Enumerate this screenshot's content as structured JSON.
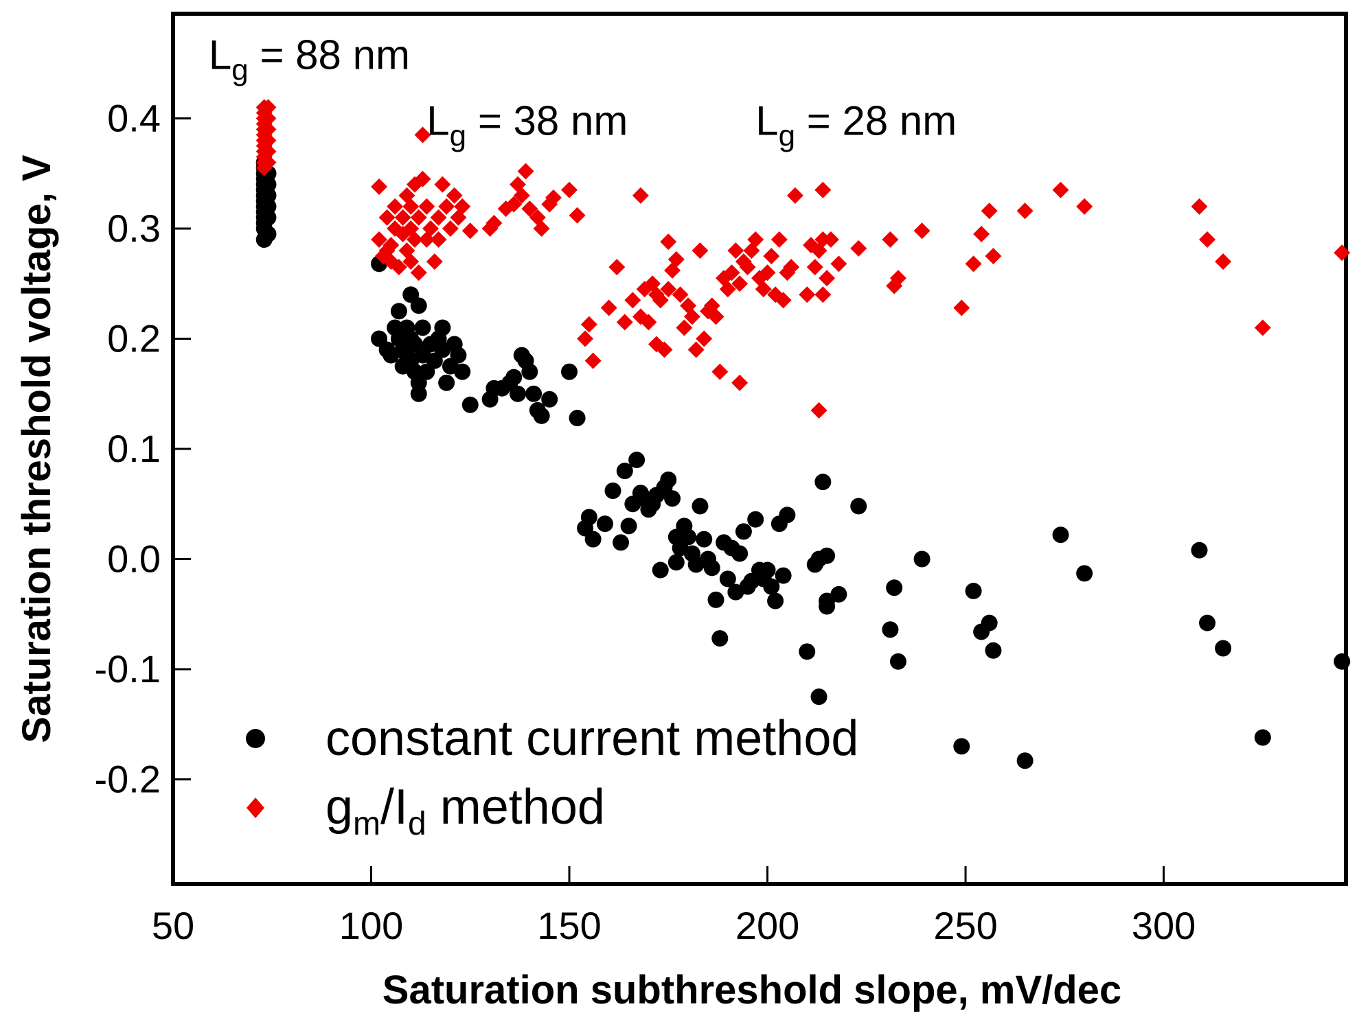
{
  "chart_data": {
    "type": "scatter",
    "title": "",
    "xlabel": "Saturation subthreshold slope, mV/dec",
    "ylabel": "Saturation threshold voltage, V",
    "xlim": [
      50,
      346
    ],
    "ylim": [
      -0.295,
      0.495
    ],
    "xticks": [
      50,
      100,
      150,
      200,
      250,
      300
    ],
    "xtick_labels": [
      "50",
      "100",
      "150",
      "200",
      "250",
      "300"
    ],
    "yticks": [
      -0.2,
      -0.1,
      0.0,
      0.1,
      0.2,
      0.3,
      0.4
    ],
    "ytick_labels": [
      "-0.2",
      "-0.1",
      "0.0",
      "0.1",
      "0.2",
      "0.3",
      "0.4"
    ],
    "grid": false,
    "legend_position": "bottom-left",
    "annotations": [
      {
        "base": "L",
        "sub": "g",
        "tail": " = 88 nm",
        "x": 59,
        "y": 0.445
      },
      {
        "base": "L",
        "sub": "g",
        "tail": " = 38 nm",
        "x": 114,
        "y": 0.385
      },
      {
        "base": "L",
        "sub": "g",
        "tail": " = 28 nm",
        "x": 197,
        "y": 0.385
      }
    ],
    "series": [
      {
        "name": "constant current method",
        "legend_label": "constant current method",
        "marker": "circle",
        "color": "#000000",
        "points": [
          [
            73,
            0.29
          ],
          [
            73,
            0.3
          ],
          [
            73,
            0.305
          ],
          [
            73,
            0.31
          ],
          [
            73,
            0.315
          ],
          [
            73,
            0.32
          ],
          [
            73,
            0.325
          ],
          [
            73,
            0.33
          ],
          [
            73,
            0.335
          ],
          [
            73,
            0.34
          ],
          [
            73,
            0.345
          ],
          [
            73,
            0.35
          ],
          [
            73,
            0.355
          ],
          [
            73,
            0.36
          ],
          [
            74,
            0.295
          ],
          [
            74,
            0.31
          ],
          [
            74,
            0.32
          ],
          [
            74,
            0.33
          ],
          [
            74,
            0.34
          ],
          [
            74,
            0.35
          ],
          [
            102,
            0.268
          ],
          [
            102,
            0.2
          ],
          [
            104,
            0.19
          ],
          [
            105,
            0.185
          ],
          [
            106,
            0.21
          ],
          [
            107,
            0.2
          ],
          [
            107,
            0.225
          ],
          [
            108,
            0.19
          ],
          [
            108,
            0.175
          ],
          [
            109,
            0.21
          ],
          [
            109,
            0.185
          ],
          [
            110,
            0.24
          ],
          [
            110,
            0.2
          ],
          [
            110,
            0.18
          ],
          [
            111,
            0.17
          ],
          [
            111,
            0.195
          ],
          [
            112,
            0.16
          ],
          [
            112,
            0.15
          ],
          [
            112,
            0.23
          ],
          [
            113,
            0.21
          ],
          [
            113,
            0.185
          ],
          [
            114,
            0.17
          ],
          [
            115,
            0.195
          ],
          [
            116,
            0.18
          ],
          [
            117,
            0.2
          ],
          [
            118,
            0.19
          ],
          [
            118,
            0.21
          ],
          [
            119,
            0.16
          ],
          [
            120,
            0.175
          ],
          [
            121,
            0.195
          ],
          [
            122,
            0.185
          ],
          [
            123,
            0.17
          ],
          [
            125,
            0.14
          ],
          [
            130,
            0.145
          ],
          [
            131,
            0.155
          ],
          [
            133,
            0.155
          ],
          [
            135,
            0.16
          ],
          [
            136,
            0.165
          ],
          [
            137,
            0.15
          ],
          [
            138,
            0.185
          ],
          [
            139,
            0.18
          ],
          [
            140,
            0.17
          ],
          [
            141,
            0.15
          ],
          [
            142,
            0.135
          ],
          [
            143,
            0.13
          ],
          [
            145,
            0.145
          ],
          [
            150,
            0.17
          ],
          [
            152,
            0.128
          ],
          [
            154,
            0.028
          ],
          [
            155,
            0.038
          ],
          [
            156,
            0.018
          ],
          [
            159,
            0.032
          ],
          [
            161,
            0.062
          ],
          [
            163,
            0.015
          ],
          [
            164,
            0.08
          ],
          [
            165,
            0.03
          ],
          [
            166,
            0.05
          ],
          [
            167,
            0.09
          ],
          [
            168,
            0.06
          ],
          [
            169,
            0.055
          ],
          [
            170,
            0.045
          ],
          [
            171,
            0.05
          ],
          [
            172,
            0.058
          ],
          [
            173,
            -0.01
          ],
          [
            174,
            0.065
          ],
          [
            175,
            0.072
          ],
          [
            176,
            0.055
          ],
          [
            177,
            0.02
          ],
          [
            177,
            -0.003
          ],
          [
            178,
            0.01
          ],
          [
            179,
            0.03
          ],
          [
            180,
            0.02
          ],
          [
            181,
            0.005
          ],
          [
            182,
            -0.005
          ],
          [
            183,
            0.048
          ],
          [
            184,
            0.018
          ],
          [
            185,
            0.0
          ],
          [
            186,
            -0.008
          ],
          [
            187,
            -0.037
          ],
          [
            188,
            -0.072
          ],
          [
            189,
            0.015
          ],
          [
            190,
            -0.018
          ],
          [
            191,
            0.01
          ],
          [
            192,
            -0.03
          ],
          [
            193,
            0.005
          ],
          [
            194,
            0.025
          ],
          [
            195,
            -0.025
          ],
          [
            196,
            -0.02
          ],
          [
            197,
            0.036
          ],
          [
            198,
            -0.01
          ],
          [
            199,
            -0.018
          ],
          [
            200,
            -0.01
          ],
          [
            201,
            -0.025
          ],
          [
            202,
            -0.038
          ],
          [
            203,
            0.032
          ],
          [
            204,
            -0.015
          ],
          [
            205,
            0.04
          ],
          [
            210,
            -0.084
          ],
          [
            212,
            -0.005
          ],
          [
            213,
            0.0
          ],
          [
            213,
            -0.125
          ],
          [
            214,
            0.07
          ],
          [
            215,
            0.003
          ],
          [
            215,
            -0.038
          ],
          [
            215,
            -0.043
          ],
          [
            218,
            -0.032
          ],
          [
            223,
            0.048
          ],
          [
            231,
            -0.064
          ],
          [
            232,
            -0.026
          ],
          [
            233,
            -0.093
          ],
          [
            239,
            0.0
          ],
          [
            249,
            -0.17
          ],
          [
            252,
            -0.029
          ],
          [
            254,
            -0.066
          ],
          [
            256,
            -0.058
          ],
          [
            257,
            -0.083
          ],
          [
            265,
            -0.183
          ],
          [
            274,
            0.022
          ],
          [
            280,
            -0.013
          ],
          [
            309,
            0.008
          ],
          [
            311,
            -0.058
          ],
          [
            315,
            -0.081
          ],
          [
            325,
            -0.162
          ],
          [
            345,
            -0.093
          ]
        ]
      },
      {
        "name": "gm/Id method",
        "legend_label": {
          "g": "g",
          "m": "m",
          "slash": "/I",
          "d": "d",
          "tail": " method"
        },
        "marker": "diamond",
        "color": "#ee0000",
        "points": [
          [
            73,
            0.355
          ],
          [
            73,
            0.36
          ],
          [
            73,
            0.365
          ],
          [
            73,
            0.37
          ],
          [
            73,
            0.375
          ],
          [
            73,
            0.38
          ],
          [
            73,
            0.385
          ],
          [
            73,
            0.39
          ],
          [
            73,
            0.395
          ],
          [
            73,
            0.4
          ],
          [
            73,
            0.405
          ],
          [
            73,
            0.41
          ],
          [
            74,
            0.36
          ],
          [
            74,
            0.37
          ],
          [
            74,
            0.38
          ],
          [
            74,
            0.39
          ],
          [
            74,
            0.4
          ],
          [
            74,
            0.41
          ],
          [
            102,
            0.338
          ],
          [
            102,
            0.29
          ],
          [
            103,
            0.275
          ],
          [
            104,
            0.31
          ],
          [
            104,
            0.28
          ],
          [
            105,
            0.285
          ],
          [
            105,
            0.27
          ],
          [
            106,
            0.3
          ],
          [
            106,
            0.32
          ],
          [
            107,
            0.265
          ],
          [
            108,
            0.295
          ],
          [
            108,
            0.31
          ],
          [
            109,
            0.28
          ],
          [
            109,
            0.33
          ],
          [
            110,
            0.32
          ],
          [
            110,
            0.3
          ],
          [
            110,
            0.27
          ],
          [
            111,
            0.29
          ],
          [
            111,
            0.34
          ],
          [
            112,
            0.31
          ],
          [
            112,
            0.26
          ],
          [
            113,
            0.345
          ],
          [
            113,
            0.385
          ],
          [
            114,
            0.32
          ],
          [
            114,
            0.29
          ],
          [
            115,
            0.3
          ],
          [
            116,
            0.27
          ],
          [
            117,
            0.31
          ],
          [
            117,
            0.29
          ],
          [
            118,
            0.34
          ],
          [
            119,
            0.32
          ],
          [
            120,
            0.3
          ],
          [
            121,
            0.33
          ],
          [
            122,
            0.31
          ],
          [
            123,
            0.32
          ],
          [
            125,
            0.298
          ],
          [
            130,
            0.3
          ],
          [
            131,
            0.305
          ],
          [
            134,
            0.318
          ],
          [
            136,
            0.322
          ],
          [
            137,
            0.34
          ],
          [
            138,
            0.33
          ],
          [
            139,
            0.352
          ],
          [
            140,
            0.318
          ],
          [
            142,
            0.31
          ],
          [
            143,
            0.3
          ],
          [
            145,
            0.322
          ],
          [
            146,
            0.328
          ],
          [
            150,
            0.335
          ],
          [
            152,
            0.312
          ],
          [
            154,
            0.2
          ],
          [
            155,
            0.213
          ],
          [
            156,
            0.18
          ],
          [
            160,
            0.228
          ],
          [
            162,
            0.265
          ],
          [
            164,
            0.215
          ],
          [
            166,
            0.235
          ],
          [
            168,
            0.33
          ],
          [
            168,
            0.22
          ],
          [
            169,
            0.245
          ],
          [
            170,
            0.215
          ],
          [
            171,
            0.25
          ],
          [
            172,
            0.195
          ],
          [
            172,
            0.24
          ],
          [
            173,
            0.235
          ],
          [
            174,
            0.19
          ],
          [
            175,
            0.245
          ],
          [
            175,
            0.288
          ],
          [
            176,
            0.262
          ],
          [
            177,
            0.272
          ],
          [
            178,
            0.24
          ],
          [
            179,
            0.21
          ],
          [
            180,
            0.23
          ],
          [
            181,
            0.22
          ],
          [
            182,
            0.19
          ],
          [
            183,
            0.28
          ],
          [
            184,
            0.2
          ],
          [
            185,
            0.225
          ],
          [
            186,
            0.23
          ],
          [
            187,
            0.22
          ],
          [
            188,
            0.17
          ],
          [
            189,
            0.255
          ],
          [
            190,
            0.245
          ],
          [
            191,
            0.26
          ],
          [
            192,
            0.28
          ],
          [
            193,
            0.25
          ],
          [
            193,
            0.16
          ],
          [
            194,
            0.27
          ],
          [
            195,
            0.265
          ],
          [
            196,
            0.28
          ],
          [
            197,
            0.29
          ],
          [
            198,
            0.255
          ],
          [
            199,
            0.245
          ],
          [
            200,
            0.26
          ],
          [
            201,
            0.275
          ],
          [
            202,
            0.24
          ],
          [
            203,
            0.29
          ],
          [
            204,
            0.235
          ],
          [
            205,
            0.26
          ],
          [
            206,
            0.265
          ],
          [
            207,
            0.33
          ],
          [
            210,
            0.24
          ],
          [
            211,
            0.285
          ],
          [
            212,
            0.265
          ],
          [
            213,
            0.28
          ],
          [
            213,
            0.135
          ],
          [
            214,
            0.29
          ],
          [
            214,
            0.335
          ],
          [
            214,
            0.24
          ],
          [
            215,
            0.255
          ],
          [
            216,
            0.29
          ],
          [
            218,
            0.268
          ],
          [
            223,
            0.282
          ],
          [
            231,
            0.29
          ],
          [
            232,
            0.248
          ],
          [
            233,
            0.255
          ],
          [
            239,
            0.298
          ],
          [
            249,
            0.228
          ],
          [
            252,
            0.268
          ],
          [
            254,
            0.295
          ],
          [
            256,
            0.316
          ],
          [
            257,
            0.275
          ],
          [
            265,
            0.316
          ],
          [
            274,
            0.335
          ],
          [
            280,
            0.32
          ],
          [
            309,
            0.32
          ],
          [
            311,
            0.29
          ],
          [
            315,
            0.27
          ],
          [
            325,
            0.21
          ],
          [
            345,
            0.278
          ]
        ]
      }
    ]
  }
}
